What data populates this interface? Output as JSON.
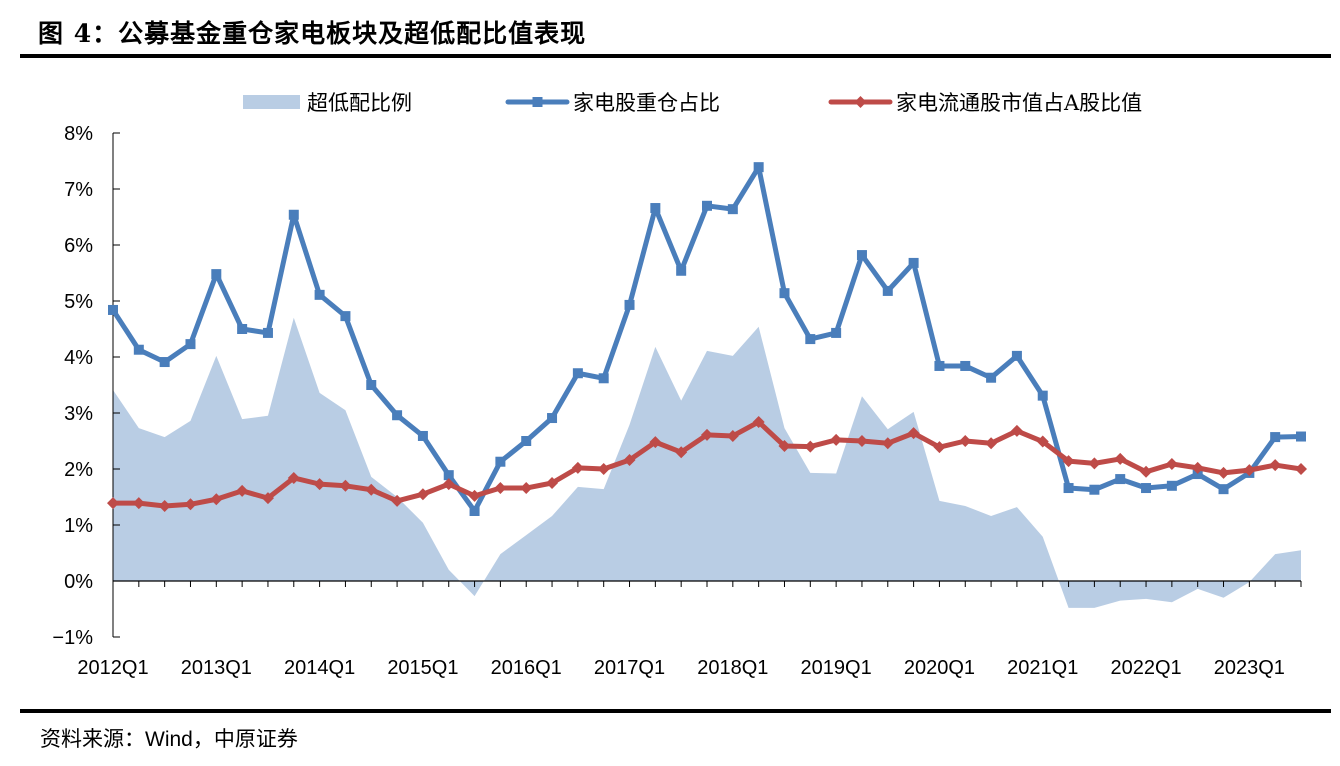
{
  "title": "图 4：公募基金重仓家电板块及超低配比值表现",
  "source": {
    "prefix": "资料来源：",
    "latin": "Wind",
    "suffix": "，中原证券"
  },
  "colors": {
    "area": "#b9cde4",
    "blue": "#4a7ebb",
    "red": "#be4b48",
    "axis": "#000000"
  },
  "chart_data": {
    "type": "line+area",
    "title": "公募基金重仓家电板块及超低配比值表现",
    "xlabel": "",
    "ylabel": "",
    "ylim": [
      -1,
      8
    ],
    "yticks": [
      -1,
      0,
      1,
      2,
      3,
      4,
      5,
      6,
      7,
      8
    ],
    "ytick_labels": [
      "−1%",
      "0%",
      "1%",
      "2%",
      "3%",
      "4%",
      "5%",
      "6%",
      "7%",
      "8%"
    ],
    "y_unit": "%",
    "grid": false,
    "legend_position": "top",
    "x": [
      "2012Q1",
      "2012Q2",
      "2012Q3",
      "2012Q4",
      "2013Q1",
      "2013Q2",
      "2013Q3",
      "2013Q4",
      "2014Q1",
      "2014Q2",
      "2014Q3",
      "2014Q4",
      "2015Q1",
      "2015Q2",
      "2015Q3",
      "2015Q4",
      "2016Q1",
      "2016Q2",
      "2016Q3",
      "2016Q4",
      "2017Q1",
      "2017Q2",
      "2017Q3",
      "2017Q4",
      "2018Q1",
      "2018Q2",
      "2018Q3",
      "2018Q4",
      "2019Q1",
      "2019Q2",
      "2019Q3",
      "2019Q4",
      "2020Q1",
      "2020Q2",
      "2020Q3",
      "2020Q4",
      "2021Q1",
      "2021Q2",
      "2021Q3",
      "2021Q4",
      "2022Q1",
      "2022Q2",
      "2022Q3",
      "2022Q4",
      "2023Q1",
      "2023Q2",
      "2023Q3"
    ],
    "xtick_labels": [
      "2012Q1",
      "2013Q1",
      "2014Q1",
      "2015Q1",
      "2016Q1",
      "2017Q1",
      "2018Q1",
      "2019Q1",
      "2020Q1",
      "2021Q1",
      "2022Q1",
      "2023Q1"
    ],
    "series": [
      {
        "name": "超低配比例",
        "kind": "area",
        "color": "#b9cde4",
        "values": [
          3.41,
          2.73,
          2.57,
          2.86,
          4.02,
          2.89,
          2.95,
          4.7,
          3.36,
          3.05,
          1.86,
          1.5,
          1.04,
          0.2,
          -0.27,
          0.48,
          0.82,
          1.16,
          1.68,
          1.64,
          2.79,
          4.18,
          3.22,
          4.11,
          4.02,
          4.54,
          2.73,
          1.93,
          1.92,
          3.3,
          2.71,
          3.02,
          1.43,
          1.34,
          1.16,
          1.32,
          0.79,
          -0.48,
          -0.48,
          -0.35,
          -0.32,
          -0.38,
          -0.14,
          -0.3,
          -0.02,
          0.48,
          0.55
        ]
      },
      {
        "name": "家电股重仓占比",
        "kind": "line",
        "marker": "square",
        "color": "#4a7ebb",
        "values": [
          4.84,
          4.13,
          3.91,
          4.23,
          5.48,
          4.5,
          4.43,
          6.54,
          5.11,
          4.73,
          3.5,
          2.96,
          2.59,
          1.89,
          1.25,
          2.13,
          2.5,
          2.91,
          3.71,
          3.62,
          4.93,
          6.66,
          5.54,
          6.7,
          6.64,
          7.39,
          5.14,
          4.32,
          4.43,
          5.82,
          5.18,
          5.68,
          3.84,
          3.84,
          3.63,
          4.02,
          3.31,
          1.66,
          1.63,
          1.82,
          1.66,
          1.7,
          1.91,
          1.64,
          1.93,
          2.57,
          2.58
        ]
      },
      {
        "name": "家电流通股市值占A股比值",
        "kind": "line",
        "marker": "diamond",
        "color": "#be4b48",
        "values": [
          1.39,
          1.39,
          1.34,
          1.37,
          1.46,
          1.61,
          1.48,
          1.84,
          1.73,
          1.7,
          1.63,
          1.43,
          1.55,
          1.73,
          1.52,
          1.66,
          1.66,
          1.75,
          2.02,
          2.0,
          2.16,
          2.48,
          2.3,
          2.61,
          2.59,
          2.84,
          2.41,
          2.4,
          2.52,
          2.5,
          2.46,
          2.64,
          2.39,
          2.5,
          2.46,
          2.68,
          2.49,
          2.14,
          2.1,
          2.18,
          1.95,
          2.09,
          2.02,
          1.93,
          1.98,
          2.07,
          2.0
        ]
      }
    ]
  }
}
